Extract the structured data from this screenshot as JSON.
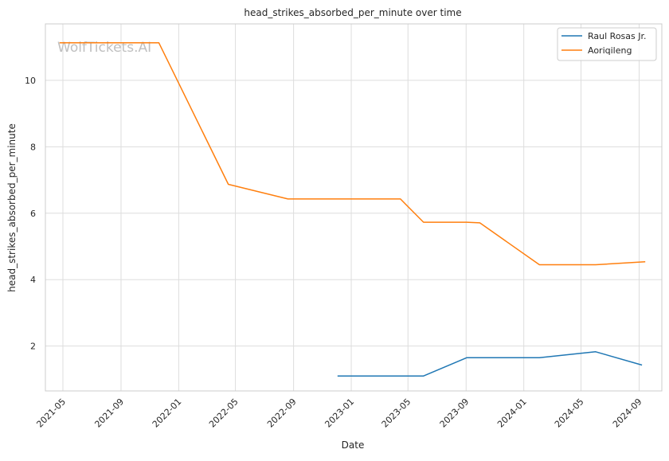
{
  "chart_data": {
    "type": "line",
    "title": "head_strikes_absorbed_per_minute over time",
    "xlabel": "Date",
    "ylabel": "head_strikes_absorbed_per_minute",
    "watermark": "WolfTickets.AI",
    "grid": true,
    "legend_position": "top-right",
    "x_ticks": [
      "2021-05",
      "2021-09",
      "2022-01",
      "2022-05",
      "2022-09",
      "2023-01",
      "2023-05",
      "2023-09",
      "2024-01",
      "2024-05",
      "2024-09"
    ],
    "y_ticks": [
      2,
      4,
      6,
      8,
      10
    ],
    "xlim": [
      "2021-03-25",
      "2024-10-19"
    ],
    "ylim": [
      0.65,
      11.7
    ],
    "series": [
      {
        "name": "Raul Rosas Jr.",
        "color": "#1f77b4",
        "points": [
          {
            "x": "2022-12-03",
            "y": 1.1
          },
          {
            "x": "2023-06-03",
            "y": 1.1
          },
          {
            "x": "2023-09-02",
            "y": 1.65
          },
          {
            "x": "2024-02-03",
            "y": 1.65
          },
          {
            "x": "2024-06-01",
            "y": 1.83
          },
          {
            "x": "2024-09-07",
            "y": 1.43
          }
        ]
      },
      {
        "name": "Aoriqileng",
        "color": "#ff7f0e",
        "points": [
          {
            "x": "2021-04-24",
            "y": 11.13
          },
          {
            "x": "2021-11-20",
            "y": 11.13
          },
          {
            "x": "2022-04-16",
            "y": 6.87
          },
          {
            "x": "2022-08-20",
            "y": 6.43
          },
          {
            "x": "2023-04-15",
            "y": 6.43
          },
          {
            "x": "2023-06-03",
            "y": 5.73
          },
          {
            "x": "2023-09-02",
            "y": 5.73
          },
          {
            "x": "2023-09-30",
            "y": 5.71
          },
          {
            "x": "2024-02-03",
            "y": 4.45
          },
          {
            "x": "2024-06-01",
            "y": 4.45
          },
          {
            "x": "2024-09-14",
            "y": 4.54
          }
        ]
      }
    ]
  }
}
